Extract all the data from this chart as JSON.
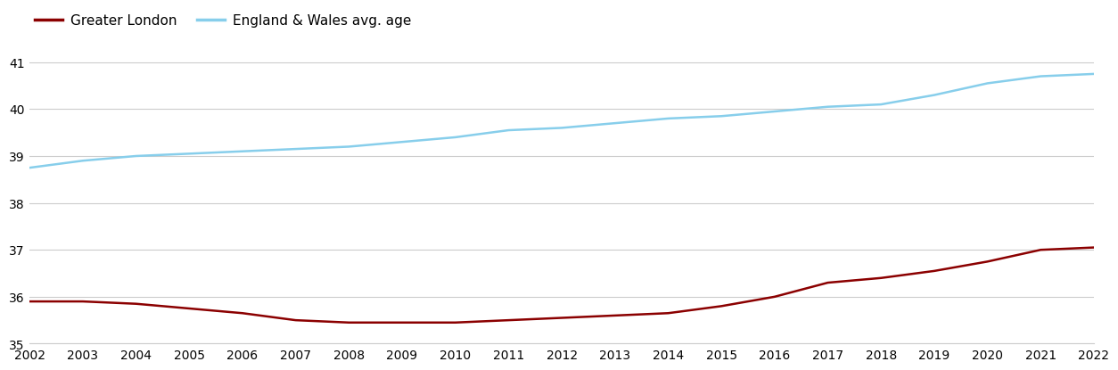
{
  "years": [
    2002,
    2003,
    2004,
    2005,
    2006,
    2007,
    2008,
    2009,
    2010,
    2011,
    2012,
    2013,
    2014,
    2015,
    2016,
    2017,
    2018,
    2019,
    2020,
    2021,
    2022
  ],
  "greater_london": [
    35.9,
    35.9,
    35.85,
    35.75,
    35.65,
    35.5,
    35.45,
    35.45,
    35.45,
    35.5,
    35.55,
    35.6,
    35.65,
    35.8,
    36.0,
    36.3,
    36.4,
    36.55,
    36.75,
    37.0,
    37.05
  ],
  "england_wales": [
    38.75,
    38.9,
    39.0,
    39.05,
    39.1,
    39.15,
    39.2,
    39.3,
    39.4,
    39.55,
    39.6,
    39.7,
    39.8,
    39.85,
    39.95,
    40.05,
    40.1,
    40.3,
    40.55,
    40.7,
    40.75
  ],
  "london_color": "#8b0000",
  "ew_color": "#87CEEB",
  "background_color": "#ffffff",
  "grid_color": "#cccccc",
  "legend_london": "Greater London",
  "legend_ew": "England & Wales avg. age",
  "ylim": [
    35,
    41.5
  ],
  "yticks": [
    35,
    36,
    37,
    38,
    39,
    40,
    41
  ],
  "line_width": 1.8,
  "font_size": 11,
  "tick_font_size": 10
}
